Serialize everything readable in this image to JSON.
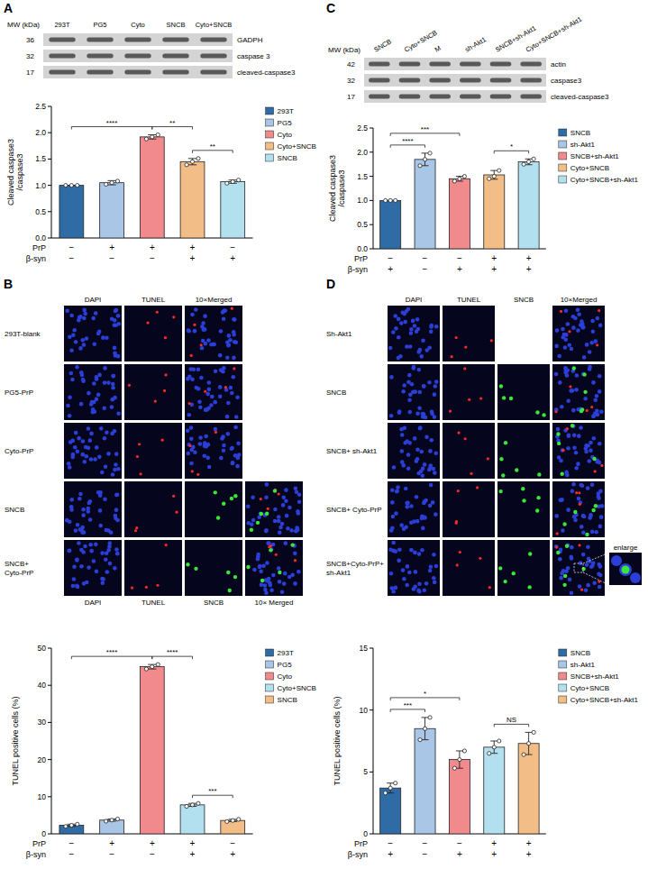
{
  "chart_data": [
    {
      "type": "bar",
      "y_label": "Cleaved caspase3\n/caspase3",
      "categories": [
        "293T",
        "PG5",
        "Cyto",
        "Cyto+SNCB",
        "SNCB"
      ],
      "values": [
        1.0,
        1.05,
        1.92,
        1.45,
        1.07
      ],
      "errors": [
        0.0,
        0.04,
        0.04,
        0.06,
        0.03
      ],
      "points": [
        [
          1.0,
          1.0,
          1.0
        ],
        [
          1.02,
          1.05,
          1.08
        ],
        [
          1.88,
          1.92,
          1.96
        ],
        [
          1.39,
          1.45,
          1.51
        ],
        [
          1.04,
          1.07,
          1.1
        ]
      ],
      "colors": [
        "#2f6ca6",
        "#a9c6e6",
        "#f08a8c",
        "#f2bd86",
        "#b3e0ef"
      ],
      "ylim": [
        0,
        2.5
      ],
      "yticks": [
        {
          "value": 0,
          "label": "0.0"
        },
        0.5,
        {
          "value": 1,
          "label": "1.0"
        },
        1.5,
        {
          "value": 2,
          "label": "2.0"
        },
        2.5
      ],
      "tick_labels": "y",
      "legend": "right",
      "annotations": [
        {
          "from": "293T",
          "to": "Cyto",
          "text": "****"
        },
        {
          "from": "Cyto",
          "to": "Cyto+SNCB",
          "text": "**"
        },
        {
          "from": "Cyto+SNCB",
          "to": "SNCB",
          "text": "**"
        }
      ],
      "conditions": [
        {
          "label": "PrP",
          "signs": [
            "−",
            "+",
            "+",
            "+",
            "−"
          ]
        },
        {
          "label": "β-syn",
          "signs": [
            "−",
            "−",
            "−",
            "+",
            "+"
          ]
        }
      ]
    },
    {
      "type": "bar",
      "y_label": "TUNEL positive cells (%)",
      "categories": [
        "293T",
        "PG5",
        "Cyto",
        "Cyto+SNCB",
        "SNCB"
      ],
      "values": [
        2.3,
        3.7,
        45.0,
        7.8,
        3.6
      ],
      "errors": [
        0.3,
        0.3,
        0.6,
        0.4,
        0.3
      ],
      "points": [
        [
          2.0,
          2.3,
          2.6
        ],
        [
          3.4,
          3.7,
          4.0
        ],
        [
          44.4,
          45.0,
          45.6
        ],
        [
          7.4,
          7.8,
          8.2
        ],
        [
          3.3,
          3.6,
          3.9
        ]
      ],
      "colors": [
        "#2f6ca6",
        "#a9c6e6",
        "#f08a8c",
        "#b3e0ef",
        "#f2bd86"
      ],
      "ylim": [
        0,
        50
      ],
      "yticks": [
        0,
        10,
        20,
        30,
        40,
        50
      ],
      "tick_labels": "y",
      "legend": "right",
      "annotations": [
        {
          "from": "293T",
          "to": "Cyto",
          "text": "****"
        },
        {
          "from": "Cyto",
          "to": "Cyto+SNCB",
          "text": "****"
        },
        {
          "from": "Cyto+SNCB",
          "to": "SNCB",
          "text": "***"
        }
      ],
      "conditions": [
        {
          "label": "PrP",
          "signs": [
            "−",
            "+",
            "+",
            "+",
            "−"
          ]
        },
        {
          "label": "β-syn",
          "signs": [
            "−",
            "−",
            "−",
            "+",
            "+"
          ]
        }
      ]
    },
    {
      "type": "bar",
      "y_label": "Cleaved caspase3\n/caspase3",
      "categories": [
        "SNCB",
        "sh-Akt1",
        "SNCB+sh-Akt1",
        "Cyto+SNCB",
        "Cyto+SNCB+sh-Akt1"
      ],
      "values": [
        1.0,
        1.85,
        1.45,
        1.53,
        1.8
      ],
      "errors": [
        0.0,
        0.13,
        0.05,
        0.09,
        0.06
      ],
      "points": [
        [
          1.0,
          1.0,
          1.0
        ],
        [
          1.72,
          1.85,
          1.98
        ],
        [
          1.4,
          1.45,
          1.5
        ],
        [
          1.45,
          1.5,
          1.62
        ],
        [
          1.75,
          1.8,
          1.86
        ]
      ],
      "colors": [
        "#2f6ca6",
        "#a9c6e6",
        "#f08a8c",
        "#f2bd86",
        "#b3e0ef"
      ],
      "ylim": [
        0,
        2.5
      ],
      "yticks": [
        {
          "value": 0,
          "label": "0.0"
        },
        0.5,
        {
          "value": 1,
          "label": "1.0"
        },
        1.5,
        {
          "value": 2,
          "label": "2.0"
        },
        2.5
      ],
      "tick_labels": "y",
      "legend": "right",
      "annotations": [
        {
          "from": "SNCB",
          "to": "sh-Akt1",
          "text": "****"
        },
        {
          "from": "SNCB",
          "to": "SNCB+sh-Akt1",
          "text": "***"
        },
        {
          "from": "Cyto+SNCB",
          "to": "Cyto+SNCB+sh-Akt1",
          "text": "*"
        }
      ],
      "conditions": [
        {
          "label": "PrP",
          "signs": [
            "−",
            "−",
            "−",
            "+",
            "+"
          ]
        },
        {
          "label": "β-syn",
          "signs": [
            "+",
            "−",
            "+",
            "+",
            "+"
          ]
        }
      ]
    },
    {
      "type": "bar",
      "y_label": "TUNEL positive cells (%)",
      "categories": [
        "SNCB",
        "sh-Akt1",
        "SNCB+sh-Akt1",
        "Cyto+SNCB",
        "Cyto+SNCB+sh-Akt1"
      ],
      "values": [
        3.7,
        8.5,
        6.0,
        7.0,
        7.3
      ],
      "errors": [
        0.4,
        0.9,
        0.7,
        0.5,
        0.9
      ],
      "points": [
        [
          3.3,
          3.7,
          4.1
        ],
        [
          7.6,
          8.5,
          9.4
        ],
        [
          5.3,
          6.0,
          6.7
        ],
        [
          6.5,
          7.0,
          7.5
        ],
        [
          6.4,
          7.3,
          8.2
        ]
      ],
      "colors": [
        "#2f6ca6",
        "#a9c6e6",
        "#f08a8c",
        "#b3e0ef",
        "#f2bd86"
      ],
      "ylim": [
        0,
        15
      ],
      "yticks": [
        0,
        5,
        10,
        15
      ],
      "tick_labels": "y",
      "legend": "right",
      "annotations": [
        {
          "from": "SNCB",
          "to": "sh-Akt1",
          "text": "***"
        },
        {
          "from": "SNCB",
          "to": "SNCB+sh-Akt1",
          "text": "*"
        },
        {
          "from": "Cyto+SNCB",
          "to": "Cyto+SNCB+sh-Akt1",
          "text": "NS"
        }
      ],
      "conditions": [
        {
          "label": "PrP",
          "signs": [
            "−",
            "−",
            "−",
            "+",
            "+"
          ]
        },
        {
          "label": "β-syn",
          "signs": [
            "+",
            "−",
            "+",
            "+",
            "+"
          ]
        }
      ]
    }
  ],
  "figure": {
    "letters": [
      "A",
      "B",
      "C",
      "D"
    ],
    "blots": [
      {
        "header": "MW (kDa)",
        "lanes": [
          "293T",
          "PG5",
          "Cyto",
          "SNCB",
          "Cyto+SNCB"
        ],
        "rows": [
          {
            "mw": 36,
            "label": "GADPH"
          },
          {
            "mw": 32,
            "label": "caspase 3"
          },
          {
            "mw": 17,
            "label": "cleaved-caspase3"
          }
        ]
      },
      {
        "header": "MW (kDa)",
        "lanes": [
          "SNCB",
          "Cyto+SNCB",
          "M",
          "sh-Akt1",
          "SNCB+sh-Akt1",
          "Cyto+SNCB+sh-Akt1"
        ],
        "rows": [
          {
            "mw": 42,
            "label": "actin"
          },
          {
            "mw": 32,
            "label": "caspase3"
          },
          {
            "mw": 17,
            "label": "cleaved-caspase3"
          }
        ]
      }
    ],
    "image_grids": [
      {
        "header": [
          "DAPI",
          "TUNEL",
          "10×Merged"
        ],
        "footer": [
          "DAPI",
          "TUNEL",
          "SNCB",
          "10× Merged"
        ],
        "rows": [
          "293T-blank",
          "PG5-PrP",
          "Cyto-PrP",
          "SNCB",
          "SNCB+ Cyto-PrP"
        ]
      },
      {
        "header": [
          "DAPI",
          "TUNEL",
          "SNCB",
          "10×Merged"
        ],
        "rows": [
          "Sh-Akt1",
          "SNCB",
          "SNCB+ sh-Akt1",
          "SNCB+ Cyto-PrP",
          "SNCB+Cyto-PrP+ sh-Akt1"
        ],
        "inset": "enlarge"
      }
    ]
  }
}
